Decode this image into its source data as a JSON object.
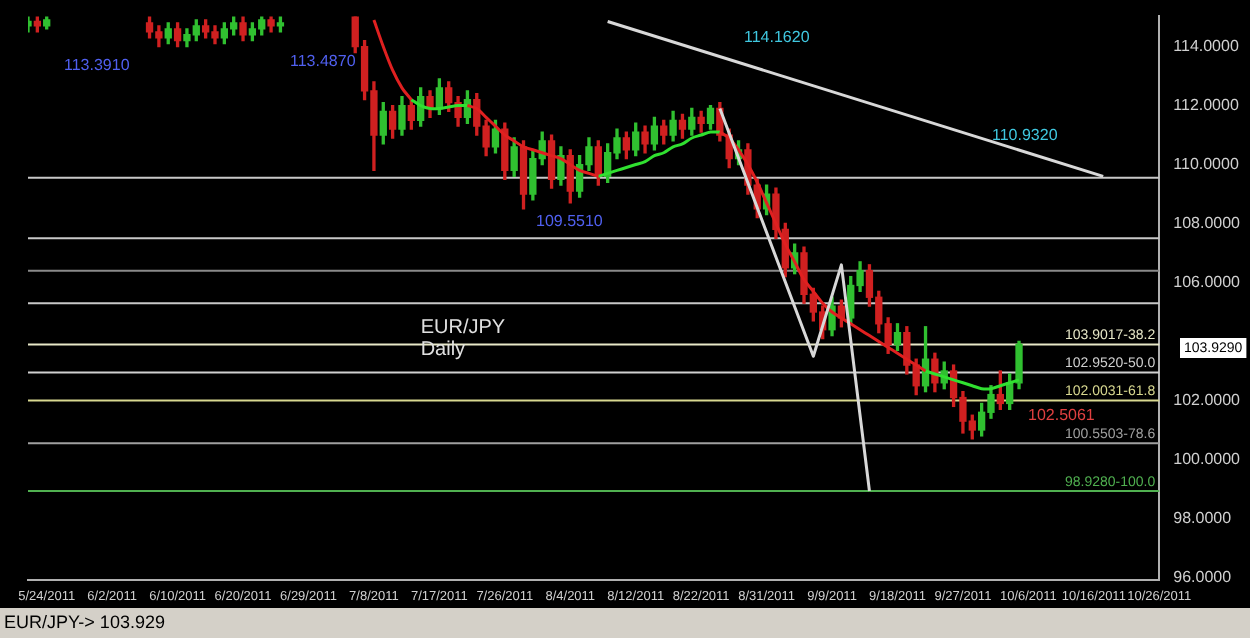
{
  "chart_data": {
    "type": "candlestick",
    "title": "EUR/JPY",
    "subtitle": "Daily",
    "categories": [
      null,
      null,
      "5/24/2011",
      null,
      null,
      null,
      null,
      null,
      null,
      "6/2/2011",
      null,
      null,
      null,
      null,
      null,
      null,
      "6/10/2011",
      null,
      null,
      null,
      null,
      null,
      null,
      "6/20/2011",
      null,
      null,
      null,
      null,
      null,
      null,
      "6/29/2011",
      null,
      null,
      null,
      null,
      null,
      null,
      "7/8/2011",
      null,
      null,
      null,
      null,
      null,
      null,
      "7/17/2011",
      null,
      null,
      null,
      null,
      null,
      null,
      "7/26/2011",
      null,
      null,
      null,
      null,
      null,
      null,
      "8/4/2011",
      null,
      null,
      null,
      null,
      null,
      null,
      "8/12/2011",
      null,
      null,
      null,
      null,
      null,
      null,
      "8/22/2011",
      null,
      null,
      null,
      null,
      null,
      null,
      "8/31/2011",
      null,
      null,
      null,
      null,
      null,
      null,
      "9/9/2011",
      null,
      null,
      null,
      null,
      null,
      null,
      "9/18/2011",
      null,
      null,
      null,
      null,
      null,
      null,
      "9/27/2011",
      null,
      null,
      null,
      null,
      null,
      null,
      "10/6/2011",
      null,
      null,
      null,
      null,
      null,
      null,
      "10/16/2011",
      null,
      null,
      null,
      null,
      null,
      null,
      "10/26/2011"
    ],
    "ohlc": [
      [
        114.7,
        115.0,
        114.5,
        114.85
      ],
      [
        114.85,
        115.0,
        114.5,
        114.7
      ],
      [
        114.7,
        115.0,
        114.6,
        114.9
      ],
      null,
      null,
      null,
      null,
      null,
      null,
      null,
      null,
      null,
      null,
      [
        114.8,
        115.0,
        114.3,
        114.5
      ],
      [
        114.5,
        114.7,
        114.0,
        114.3
      ],
      [
        114.3,
        114.8,
        114.1,
        114.6
      ],
      [
        114.6,
        114.8,
        114.0,
        114.2
      ],
      [
        114.2,
        114.6,
        114.0,
        114.4
      ],
      [
        114.4,
        114.9,
        114.2,
        114.7
      ],
      [
        114.7,
        114.9,
        114.3,
        114.5
      ],
      [
        114.5,
        114.7,
        114.1,
        114.3
      ],
      [
        114.3,
        114.8,
        114.1,
        114.6
      ],
      [
        114.6,
        115.0,
        114.4,
        114.8
      ],
      [
        114.8,
        115.0,
        114.2,
        114.4
      ],
      [
        114.4,
        114.8,
        114.2,
        114.6
      ],
      [
        114.6,
        115.0,
        114.4,
        114.9
      ],
      [
        114.9,
        115.0,
        114.5,
        114.7
      ],
      [
        114.7,
        115.0,
        114.5,
        114.8
      ],
      null,
      null,
      null,
      null,
      null,
      null,
      null,
      [
        115.0,
        115.0,
        113.8,
        114.0
      ],
      [
        114.0,
        114.2,
        112.2,
        112.5
      ],
      [
        112.5,
        112.8,
        109.8,
        111.0
      ],
      [
        111.0,
        112.1,
        110.7,
        111.8
      ],
      [
        111.8,
        112.0,
        110.9,
        111.2
      ],
      [
        111.2,
        112.3,
        111.0,
        112.0
      ],
      [
        112.0,
        112.2,
        111.2,
        111.5
      ],
      [
        111.5,
        112.6,
        111.3,
        112.3
      ],
      [
        112.3,
        112.5,
        111.6,
        111.9
      ],
      [
        111.9,
        112.9,
        111.7,
        112.6
      ],
      [
        112.6,
        112.8,
        111.8,
        112.1
      ],
      [
        112.1,
        112.3,
        111.3,
        111.6
      ],
      [
        111.6,
        112.5,
        111.4,
        112.2
      ],
      [
        112.2,
        112.4,
        111.0,
        111.3
      ],
      [
        111.3,
        111.5,
        110.3,
        110.6
      ],
      [
        110.6,
        111.5,
        110.4,
        111.2
      ],
      [
        111.2,
        111.4,
        109.5,
        109.8
      ],
      [
        109.8,
        110.9,
        109.6,
        110.6
      ],
      [
        110.6,
        110.8,
        108.5,
        109.0
      ],
      [
        109.0,
        110.5,
        108.8,
        110.2
      ],
      [
        110.2,
        111.1,
        110.0,
        110.8
      ],
      [
        110.8,
        111.0,
        109.2,
        109.5
      ],
      [
        109.5,
        110.6,
        109.3,
        110.3
      ],
      [
        110.3,
        110.5,
        108.7,
        109.1
      ],
      [
        109.1,
        110.3,
        108.9,
        110.0
      ],
      [
        110.0,
        110.9,
        109.8,
        110.6
      ],
      [
        110.6,
        110.8,
        109.3,
        109.6
      ],
      [
        109.6,
        110.7,
        109.4,
        110.4
      ],
      [
        110.4,
        111.2,
        110.2,
        110.9
      ],
      [
        110.9,
        111.1,
        110.2,
        110.5
      ],
      [
        110.5,
        111.4,
        110.3,
        111.1
      ],
      [
        111.1,
        111.3,
        110.4,
        110.7
      ],
      [
        110.7,
        111.6,
        110.5,
        111.3
      ],
      [
        111.3,
        111.5,
        110.7,
        111.0
      ],
      [
        111.0,
        111.8,
        110.8,
        111.5
      ],
      [
        111.5,
        111.7,
        110.9,
        111.2
      ],
      [
        111.2,
        111.9,
        111.0,
        111.6
      ],
      [
        111.6,
        111.8,
        111.1,
        111.4
      ],
      [
        111.4,
        112.0,
        111.2,
        111.9
      ],
      [
        111.9,
        112.1,
        110.8,
        111.0
      ],
      [
        111.0,
        111.2,
        109.9,
        110.2
      ],
      [
        110.2,
        110.8,
        110.0,
        110.5
      ],
      [
        110.5,
        110.7,
        109.0,
        109.3
      ],
      [
        109.3,
        109.5,
        108.2,
        108.5
      ],
      [
        108.5,
        109.3,
        108.3,
        109.0
      ],
      [
        109.0,
        109.2,
        107.5,
        107.8
      ],
      [
        107.8,
        108.0,
        106.2,
        106.5
      ],
      [
        106.5,
        107.3,
        106.3,
        107.0
      ],
      [
        107.0,
        107.2,
        105.3,
        105.6
      ],
      [
        105.6,
        105.8,
        104.7,
        105.0
      ],
      [
        105.0,
        105.2,
        104.1,
        104.4
      ],
      [
        104.4,
        105.5,
        104.2,
        105.2
      ],
      [
        105.2,
        105.4,
        104.5,
        104.8
      ],
      [
        104.8,
        106.2,
        104.6,
        105.9
      ],
      [
        105.9,
        106.7,
        105.7,
        106.4
      ],
      [
        106.4,
        106.6,
        105.2,
        105.5
      ],
      [
        105.5,
        105.7,
        104.3,
        104.6
      ],
      [
        104.6,
        104.8,
        103.6,
        103.9
      ],
      [
        103.9,
        104.6,
        103.7,
        104.3
      ],
      [
        104.3,
        104.5,
        102.9,
        103.2
      ],
      [
        103.2,
        103.4,
        102.2,
        102.5
      ],
      [
        102.5,
        104.5,
        102.3,
        103.4
      ],
      [
        103.4,
        103.6,
        102.3,
        102.6
      ],
      [
        102.6,
        103.3,
        102.4,
        103.0
      ],
      [
        103.0,
        103.2,
        101.8,
        102.1
      ],
      [
        102.1,
        102.3,
        100.9,
        101.3
      ],
      [
        101.3,
        101.5,
        100.7,
        101.0
      ],
      [
        101.0,
        101.9,
        100.8,
        101.6
      ],
      [
        101.6,
        102.5,
        101.4,
        102.2
      ],
      [
        102.2,
        103.0,
        101.7,
        101.9
      ],
      [
        101.9,
        102.9,
        101.7,
        102.6
      ],
      [
        102.6,
        104.0,
        102.4,
        103.9
      ],
      null,
      null,
      null,
      null,
      null,
      null,
      null,
      null,
      null,
      null,
      null,
      null,
      null,
      null,
      null
    ],
    "series": [
      {
        "type": "line",
        "color": "#e02020",
        "values": [
          null,
          null,
          null,
          null,
          null,
          null,
          null,
          null,
          null,
          null,
          null,
          null,
          null,
          null,
          null,
          null,
          null,
          null,
          null,
          null,
          null,
          null,
          null,
          null,
          null,
          null,
          null,
          null,
          null,
          null,
          null,
          null,
          null,
          null,
          null,
          null,
          null,
          114.9,
          114.0,
          113.2,
          112.6,
          112.2,
          null,
          null,
          null,
          null,
          null,
          112.0,
          111.9,
          111.6,
          111.3,
          111.0,
          110.8,
          110.6,
          110.5,
          110.4,
          110.3,
          110.2,
          110.0,
          109.8,
          109.7,
          109.6,
          null,
          null,
          null,
          null,
          null,
          null,
          null,
          null,
          null,
          null,
          null,
          null,
          111.1,
          110.9,
          110.5,
          110.0,
          109.4,
          108.7,
          108.0,
          107.3,
          106.7,
          106.1,
          105.7,
          105.3,
          105.0,
          104.8,
          104.6,
          104.4,
          104.2,
          104.0,
          103.8,
          103.6,
          103.4,
          103.2,
          103.0,
          null,
          null,
          null,
          null,
          null,
          null,
          null,
          null,
          null,
          null,
          null,
          null,
          null,
          null,
          null,
          null,
          null,
          null,
          null,
          null,
          null,
          null,
          null,
          null,
          null
        ]
      },
      {
        "type": "line",
        "color": "#30e030",
        "values": [
          null,
          null,
          null,
          null,
          null,
          null,
          null,
          null,
          null,
          null,
          null,
          null,
          null,
          null,
          null,
          null,
          null,
          null,
          null,
          null,
          null,
          null,
          null,
          null,
          null,
          null,
          null,
          null,
          null,
          null,
          null,
          null,
          null,
          null,
          null,
          null,
          null,
          null,
          null,
          null,
          null,
          112.2,
          112.0,
          111.9,
          111.9,
          111.95,
          112.0,
          112.0,
          null,
          null,
          null,
          null,
          null,
          null,
          null,
          null,
          null,
          null,
          null,
          null,
          null,
          109.6,
          109.7,
          109.8,
          109.9,
          110.0,
          110.1,
          110.3,
          110.4,
          110.6,
          110.7,
          110.9,
          111.0,
          111.1,
          111.1,
          null,
          null,
          null,
          null,
          null,
          null,
          null,
          null,
          null,
          null,
          null,
          null,
          null,
          null,
          null,
          null,
          null,
          null,
          null,
          null,
          null,
          103.0,
          102.9,
          102.8,
          102.7,
          102.6,
          102.5,
          102.4,
          102.4,
          102.5,
          102.6,
          102.7,
          null,
          null,
          null,
          null,
          null,
          null,
          null,
          null,
          null,
          null,
          null,
          null,
          null,
          null,
          null
        ]
      },
      {
        "type": "line",
        "color": "#d8d8d8",
        "values": [
          null,
          null,
          null,
          null,
          null,
          null,
          null,
          null,
          null,
          null,
          null,
          null,
          null,
          null,
          null,
          null,
          null,
          null,
          null,
          null,
          null,
          null,
          null,
          null,
          null,
          null,
          null,
          null,
          null,
          null,
          null,
          null,
          null,
          null,
          null,
          null,
          null,
          null,
          null,
          null,
          null,
          null,
          null,
          null,
          null,
          null,
          null,
          null,
          null,
          null,
          null,
          null,
          null,
          null,
          null,
          null,
          null,
          null,
          null,
          null,
          null,
          null,
          114.85,
          null,
          null,
          null,
          null,
          null,
          null,
          null,
          null,
          null,
          null,
          null,
          null,
          null,
          null,
          null,
          null,
          null,
          null,
          null,
          null,
          null,
          null,
          null,
          null,
          null,
          null,
          null,
          null,
          null,
          null,
          null,
          null,
          null,
          null,
          null,
          null,
          null,
          null,
          null,
          null,
          null,
          null,
          null,
          null,
          null,
          null,
          null,
          null,
          null,
          null,
          null,
          null,
          109.6,
          null,
          null,
          null,
          null,
          null,
          null
        ]
      },
      {
        "type": "line",
        "color": "#d8d8d8",
        "values": [
          null,
          null,
          null,
          null,
          null,
          null,
          null,
          null,
          null,
          null,
          null,
          null,
          null,
          null,
          null,
          null,
          null,
          null,
          null,
          null,
          null,
          null,
          null,
          null,
          null,
          null,
          null,
          null,
          null,
          null,
          null,
          null,
          null,
          null,
          null,
          null,
          null,
          null,
          null,
          null,
          null,
          null,
          null,
          null,
          null,
          null,
          null,
          null,
          null,
          null,
          null,
          null,
          null,
          null,
          null,
          null,
          null,
          null,
          null,
          null,
          null,
          null,
          null,
          null,
          null,
          null,
          null,
          null,
          null,
          null,
          null,
          null,
          null,
          null,
          111.9,
          null,
          null,
          null,
          null,
          null,
          null,
          null,
          null,
          null,
          103.5,
          null,
          null,
          106.6,
          null,
          null,
          98.93,
          null,
          null,
          null,
          null,
          null,
          null,
          null,
          null,
          null,
          null,
          null,
          null,
          null,
          null,
          null,
          null,
          null,
          null,
          null,
          null,
          null,
          null,
          null,
          null,
          null,
          null,
          null,
          null,
          null,
          null,
          null
        ]
      }
    ],
    "ylim": [
      95.9,
      115.05
    ],
    "yticks": [
      {
        "value": 96,
        "label": "96.0000"
      },
      {
        "value": 98,
        "label": "98.0000"
      },
      {
        "value": 100,
        "label": "100.0000"
      },
      {
        "value": 102,
        "label": "102.0000"
      },
      {
        "value": 106,
        "label": "106.0000"
      },
      {
        "value": 108,
        "label": "108.0000"
      },
      {
        "value": 110,
        "label": "110.0000"
      },
      {
        "value": 112,
        "label": "112.0000"
      },
      {
        "value": 114,
        "label": "114.0000"
      }
    ],
    "ref_lines": [
      {
        "axis": "y",
        "value": 109.551,
        "color": "#c8c8c8"
      },
      {
        "axis": "y",
        "value": 107.5,
        "color": "#c8c8c8"
      },
      {
        "axis": "y",
        "value": 106.4,
        "color": "#8a8a8a"
      },
      {
        "axis": "y",
        "value": 105.3,
        "color": "#c8c8c8"
      },
      {
        "axis": "y",
        "value": 103.9017,
        "label": "103.9017-38.2",
        "color": "#e8e8c8"
      },
      {
        "axis": "y",
        "value": 102.952,
        "label": "102.9520-50.0",
        "color": "#d0d0d0"
      },
      {
        "axis": "y",
        "value": 102.0031,
        "label": "102.0031-61.8",
        "color": "#d8d890"
      },
      {
        "axis": "y",
        "value": 100.5503,
        "label": "100.5503-78.6",
        "color": "#a0a0a0"
      },
      {
        "axis": "y",
        "value": 98.928,
        "label": "98.9280-100.0",
        "color": "#50b050"
      }
    ],
    "annotations": [
      "113.3910",
      "113.4870",
      "114.1620",
      "110.9320",
      "109.5510",
      "102.5061",
      "103.9290",
      "EUR/JPY-> 103.929"
    ]
  }
}
